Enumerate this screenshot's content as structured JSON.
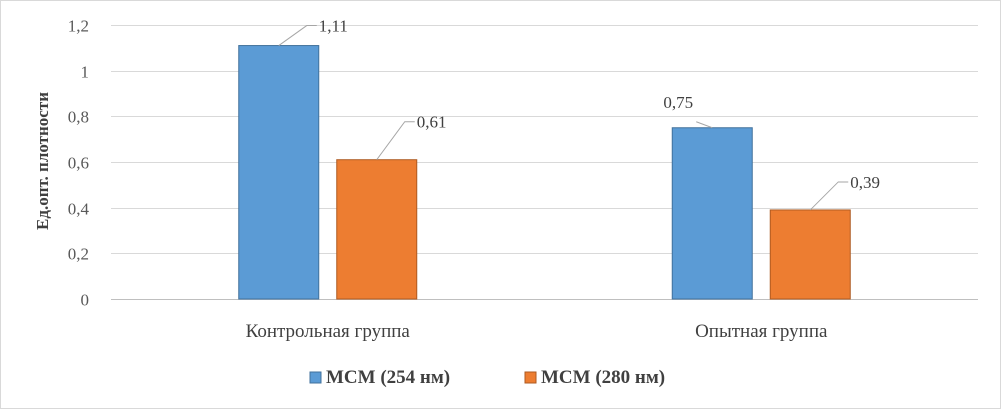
{
  "chart_data": {
    "type": "bar",
    "title": "",
    "xlabel": "",
    "ylabel": "Ед.опт. плотности",
    "ylim": [
      0,
      1.2
    ],
    "yticks": [
      "0",
      "0,2",
      "0,4",
      "0,6",
      "0,8",
      "1",
      "1,2"
    ],
    "categories": [
      "Контрольная группа",
      "Опытная группа"
    ],
    "series": [
      {
        "name": "МСМ (254 нм)",
        "color": "#5b9bd5",
        "values": [
          1.11,
          0.75
        ],
        "labels": [
          "1,11",
          "0,75"
        ]
      },
      {
        "name": "МСМ (280 нм)",
        "color": "#ed7d31",
        "values": [
          0.61,
          0.39
        ],
        "labels": [
          "0,61",
          "0,39"
        ]
      }
    ],
    "grid": true,
    "legend_position": "bottom"
  }
}
